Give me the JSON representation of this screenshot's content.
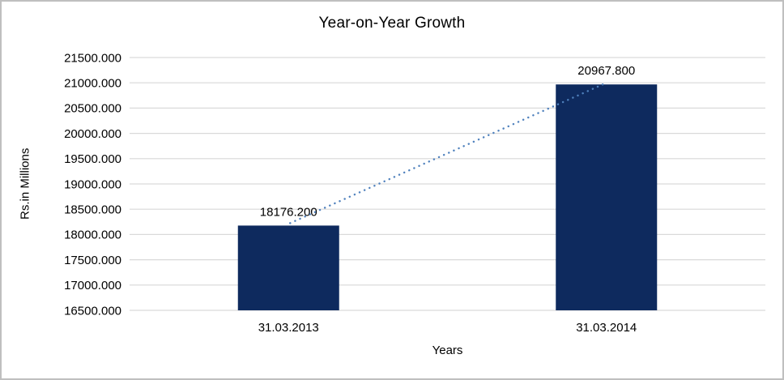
{
  "chart_data": {
    "type": "bar",
    "title": "Year-on-Year Growth",
    "xlabel": "Years",
    "ylabel": "Rs.in Millions",
    "categories": [
      "31.03.2013",
      "31.03.2014"
    ],
    "values": [
      18176.2,
      20967.8
    ],
    "value_labels": [
      "18176.200",
      "20967.800"
    ],
    "ylim": [
      16500,
      21500
    ],
    "yticks": [
      16500,
      17000,
      17500,
      18000,
      18500,
      19000,
      19500,
      20000,
      20500,
      21000,
      21500
    ],
    "ytick_labels": [
      "16500.000",
      "17000.000",
      "17500.000",
      "18000.000",
      "18500.000",
      "19000.000",
      "19500.000",
      "20000.000",
      "20500.000",
      "21000.000",
      "21500.000"
    ],
    "grid": "horizontal",
    "legend": "none",
    "trendline": {
      "style": "dotted",
      "connects": "bar-top-centers"
    },
    "colors": {
      "bar": "#0e2a5e",
      "trendline": "#4f81bd",
      "gridline": "#d9d9d9",
      "text": "#000000",
      "border": "#bfbfbf",
      "background": "#ffffff"
    }
  }
}
